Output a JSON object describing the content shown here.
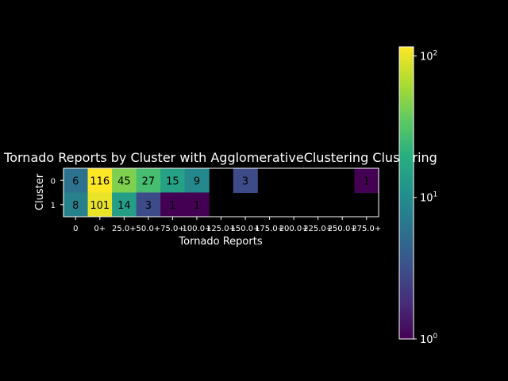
{
  "chart_data": {
    "type": "heatmap",
    "title": "Tornado Reports by Cluster with AgglomerativeClustering Clustering",
    "xlabel": "Tornado Reports",
    "ylabel": "Cluster",
    "x_categories": [
      "0",
      "0+",
      "25.0+",
      "50.0+",
      "75.0+",
      "100.0+",
      "125.0+",
      "150.0+",
      "175.0+",
      "200.0+",
      "225.0+",
      "250.0+",
      "275.0+"
    ],
    "y_categories": [
      "0",
      "1"
    ],
    "values": [
      [
        6,
        116,
        45,
        27,
        15,
        9,
        null,
        3,
        null,
        null,
        null,
        null,
        1
      ],
      [
        8,
        101,
        14,
        3,
        1,
        1,
        null,
        null,
        null,
        null,
        null,
        null,
        null
      ]
    ],
    "color_scale": "log",
    "colormap": "viridis",
    "colorbar": {
      "min": 1,
      "max": 116,
      "ticks": [
        "10^0",
        "10^1",
        "10^2"
      ],
      "tick_values": [
        1,
        10,
        100
      ]
    },
    "background": "#000000",
    "text_color": "#ffffff"
  }
}
